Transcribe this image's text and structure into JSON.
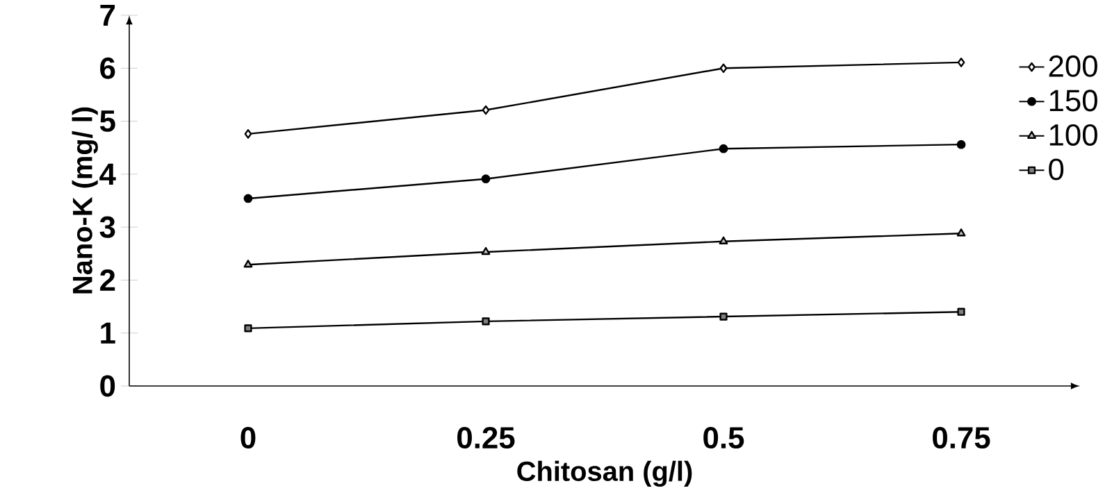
{
  "chart_data": {
    "type": "line",
    "xlabel": "Chitosan (g/l)",
    "ylabel": "Nano-K (mg/ l)",
    "categories": [
      "0",
      "0.25",
      "0.5",
      "0.75"
    ],
    "series": [
      {
        "name": "200",
        "color": "#000000",
        "marker": "diamond",
        "values": [
          4.76,
          5.21,
          6.0,
          6.11
        ]
      },
      {
        "name": "150",
        "color": "#000000",
        "marker": "circle",
        "values": [
          3.54,
          3.91,
          4.48,
          4.56
        ]
      },
      {
        "name": "100",
        "color": "#000000",
        "marker": "triangle",
        "values": [
          2.29,
          2.53,
          2.73,
          2.88
        ]
      },
      {
        "name": "0",
        "color": "#000000",
        "marker": "square",
        "values": [
          1.09,
          1.22,
          1.31,
          1.4
        ]
      }
    ],
    "ylim": [
      0,
      7
    ],
    "yticks": [
      0,
      1,
      2,
      3,
      4,
      5,
      6,
      7
    ],
    "grid": false,
    "legend": "right"
  }
}
